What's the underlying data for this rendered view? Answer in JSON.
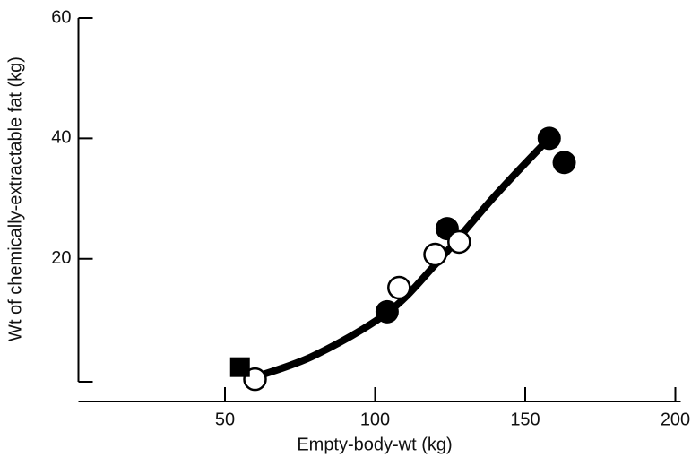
{
  "chart_data": {
    "type": "scatter",
    "x_label": "Empty-body-wt (kg)",
    "y_label": "Wt of chemically-extractable fat (kg)",
    "xlim": [
      0,
      200
    ],
    "ylim": [
      -4,
      60
    ],
    "xticks": [
      50,
      100,
      150,
      200
    ],
    "yticks": [
      20,
      40,
      60
    ],
    "series": [
      {
        "marker": "filled-circle",
        "color": "#000000",
        "x": [
          104,
          124,
          158,
          163
        ],
        "values": [
          11.2,
          25,
          40,
          36
        ]
      },
      {
        "marker": "open-circle",
        "color": "#000000",
        "x": [
          60,
          108,
          120,
          128
        ],
        "values": [
          0,
          15.2,
          20.7,
          22.8
        ]
      },
      {
        "marker": "filled-square",
        "color": "#000000",
        "x": [
          55
        ],
        "values": [
          2
        ]
      },
      {
        "marker": "line",
        "color": "#000000",
        "x": [
          61,
          80,
          104,
          120,
          140,
          157
        ],
        "values": [
          0.5,
          4,
          11,
          19,
          30.5,
          39.5
        ]
      }
    ]
  }
}
